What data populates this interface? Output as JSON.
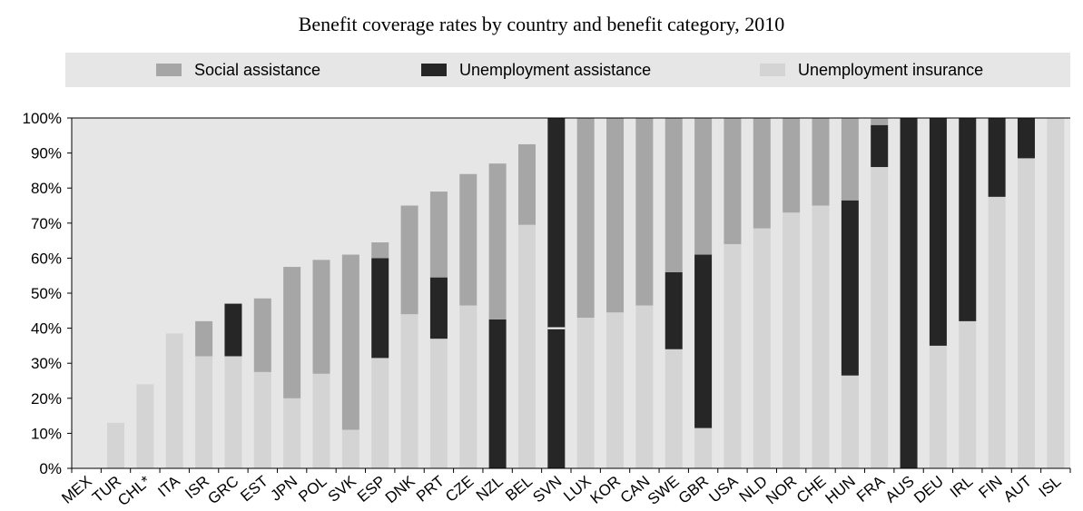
{
  "chart_data": {
    "type": "bar",
    "stacked": true,
    "title": "Benefit coverage rates by country and benefit category, 2010",
    "xlabel": "",
    "ylabel": "",
    "ylim": [
      0,
      100
    ],
    "y_ticks": [
      "0%",
      "10%",
      "20%",
      "30%",
      "40%",
      "50%",
      "60%",
      "70%",
      "80%",
      "90%",
      "100%"
    ],
    "grid": false,
    "legend_position": "top",
    "categories": [
      "MEX",
      "TUR",
      "CHL*",
      "ITA",
      "ISR",
      "GRC",
      "EST",
      "JPN",
      "POL",
      "SVK",
      "ESP",
      "DNK",
      "PRT",
      "CZE",
      "NZL",
      "BEL",
      "SVN",
      "LUX",
      "KOR",
      "CAN",
      "SWE",
      "GBR",
      "USA",
      "NLD",
      "NOR",
      "CHE",
      "HUN",
      "FRA",
      "AUS",
      "DEU",
      "IRL",
      "FIN",
      "AUT",
      "ISL"
    ],
    "series": [
      {
        "name": "Unemployment insurance",
        "color": "#d4d4d4",
        "values": [
          0,
          13,
          24,
          38.5,
          32,
          32,
          27.5,
          20,
          27,
          11,
          31.5,
          44,
          37,
          46.5,
          0,
          69.5,
          0,
          43,
          44.5,
          46.5,
          34,
          11.5,
          64,
          68.5,
          73,
          75,
          26.5,
          86,
          0,
          35,
          42,
          77.5,
          88.5,
          100
        ]
      },
      {
        "name": "Unemployment assistance",
        "color": "#262626",
        "values": [
          0,
          0,
          0,
          0,
          0,
          15,
          0,
          0,
          0,
          0,
          28.5,
          0,
          17.5,
          0,
          42.5,
          0,
          100,
          0,
          0,
          0,
          22,
          49.5,
          0,
          0,
          0,
          0,
          50,
          12,
          100,
          65,
          58,
          22.5,
          11.5,
          0
        ]
      },
      {
        "name": "Social assistance",
        "color": "#a6a6a6",
        "values": [
          0,
          0,
          0,
          0,
          10,
          0,
          21,
          37.5,
          32.5,
          50,
          4.5,
          31,
          24.5,
          37.5,
          44.5,
          23,
          0,
          57,
          55.5,
          53.5,
          44,
          39,
          36,
          31.5,
          27,
          25,
          23.5,
          2,
          0,
          0,
          0,
          0,
          0,
          0
        ]
      }
    ],
    "legend_order": [
      "Social assistance",
      "Unemployment assistance",
      "Unemployment insurance"
    ],
    "annotation": {
      "category": "SVN",
      "value": 40
    }
  }
}
